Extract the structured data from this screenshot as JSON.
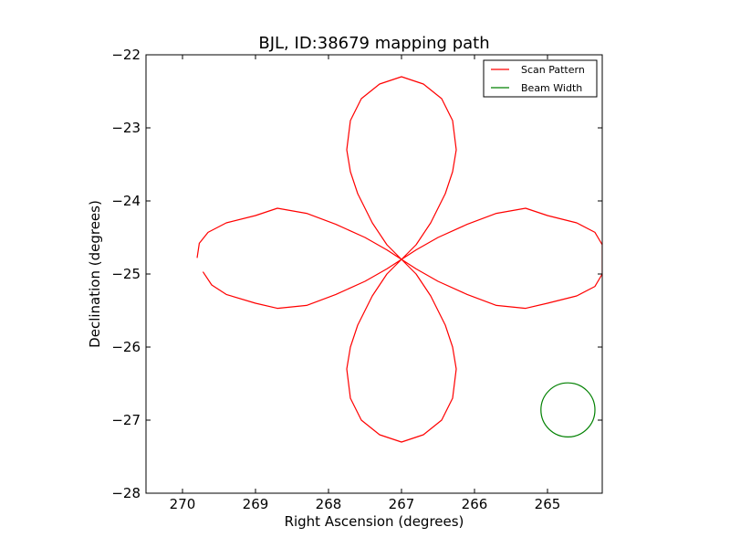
{
  "chart_data": {
    "type": "line",
    "title": "BJL, ID:38679 mapping path",
    "xlabel": "Right Ascension (degrees)",
    "ylabel": "Declination (degrees)",
    "xlim": [
      270.5,
      264.25
    ],
    "ylim": [
      -28,
      -22
    ],
    "x_inverted": true,
    "xticks": [
      270,
      269,
      268,
      267,
      266,
      265
    ],
    "xtick_labels": [
      "270",
      "269",
      "268",
      "267",
      "266",
      "265"
    ],
    "yticks": [
      -22,
      -23,
      -24,
      -25,
      -26,
      -27,
      -28
    ],
    "ytick_labels": [
      "−22",
      "−23",
      "−24",
      "−25",
      "−26",
      "−27",
      "−28"
    ],
    "grid": false,
    "legend_position": "top-right",
    "series": [
      {
        "name": "Scan Pattern",
        "color": "#ff0000",
        "shape": "four-petal rose (rhodonea) curve",
        "center": [
          267.0,
          -24.8
        ],
        "petal_tips": [
          [
            269.8,
            -24.8
          ],
          [
            267.0,
            -22.3
          ],
          [
            264.25,
            -24.8
          ],
          [
            267.0,
            -27.3
          ]
        ],
        "start_point": [
          269.8,
          -24.78
        ],
        "end_point": [
          269.72,
          -24.97
        ],
        "points": [
          [
            269.8,
            -24.78
          ],
          [
            269.77,
            -24.58
          ],
          [
            269.65,
            -24.43
          ],
          [
            269.4,
            -24.3
          ],
          [
            269.0,
            -24.2
          ],
          [
            268.7,
            -24.1
          ],
          [
            268.3,
            -24.17
          ],
          [
            267.9,
            -24.32
          ],
          [
            267.5,
            -24.5
          ],
          [
            267.2,
            -24.67
          ],
          [
            267.0,
            -24.8
          ],
          [
            266.8,
            -24.67
          ],
          [
            266.5,
            -24.5
          ],
          [
            266.1,
            -24.32
          ],
          [
            265.7,
            -24.17
          ],
          [
            265.3,
            -24.1
          ],
          [
            265.0,
            -24.2
          ],
          [
            264.6,
            -24.3
          ],
          [
            264.35,
            -24.43
          ],
          [
            264.25,
            -24.6
          ],
          [
            264.25,
            -24.8
          ],
          [
            264.25,
            -25.0
          ],
          [
            264.35,
            -25.17
          ],
          [
            264.6,
            -25.3
          ],
          [
            265.0,
            -25.4
          ],
          [
            265.3,
            -25.47
          ],
          [
            265.7,
            -25.43
          ],
          [
            266.1,
            -25.28
          ],
          [
            266.5,
            -25.1
          ],
          [
            266.8,
            -24.93
          ],
          [
            267.0,
            -24.8
          ],
          [
            266.8,
            -25.0
          ],
          [
            266.6,
            -25.3
          ],
          [
            266.4,
            -25.7
          ],
          [
            266.3,
            -26.0
          ],
          [
            266.25,
            -26.3
          ],
          [
            266.3,
            -26.7
          ],
          [
            266.45,
            -27.0
          ],
          [
            266.7,
            -27.2
          ],
          [
            267.0,
            -27.3
          ],
          [
            267.3,
            -27.2
          ],
          [
            267.55,
            -27.0
          ],
          [
            267.7,
            -26.7
          ],
          [
            267.75,
            -26.3
          ],
          [
            267.7,
            -26.0
          ],
          [
            267.6,
            -25.7
          ],
          [
            267.4,
            -25.3
          ],
          [
            267.2,
            -25.0
          ],
          [
            267.0,
            -24.8
          ],
          [
            267.2,
            -24.6
          ],
          [
            267.4,
            -24.3
          ],
          [
            267.6,
            -23.9
          ],
          [
            267.7,
            -23.6
          ],
          [
            267.75,
            -23.3
          ],
          [
            267.7,
            -22.9
          ],
          [
            267.55,
            -22.6
          ],
          [
            267.3,
            -22.4
          ],
          [
            267.0,
            -22.3
          ],
          [
            266.7,
            -22.4
          ],
          [
            266.45,
            -22.6
          ],
          [
            266.3,
            -22.9
          ],
          [
            266.25,
            -23.3
          ],
          [
            266.3,
            -23.6
          ],
          [
            266.4,
            -23.9
          ],
          [
            266.6,
            -24.3
          ],
          [
            266.8,
            -24.6
          ],
          [
            267.0,
            -24.8
          ],
          [
            267.2,
            -24.93
          ],
          [
            267.5,
            -25.1
          ],
          [
            267.9,
            -25.28
          ],
          [
            268.3,
            -25.43
          ],
          [
            268.7,
            -25.47
          ],
          [
            269.0,
            -25.4
          ],
          [
            269.4,
            -25.28
          ],
          [
            269.6,
            -25.15
          ],
          [
            269.72,
            -24.97
          ]
        ]
      },
      {
        "name": "Beam Width",
        "color": "#008000",
        "shape": "circle",
        "center": [
          264.72,
          -26.86
        ],
        "radius_deg": 0.37
      }
    ],
    "legend": [
      {
        "label": "Scan Pattern",
        "color": "#ff0000"
      },
      {
        "label": "Beam Width",
        "color": "#008000"
      }
    ]
  }
}
